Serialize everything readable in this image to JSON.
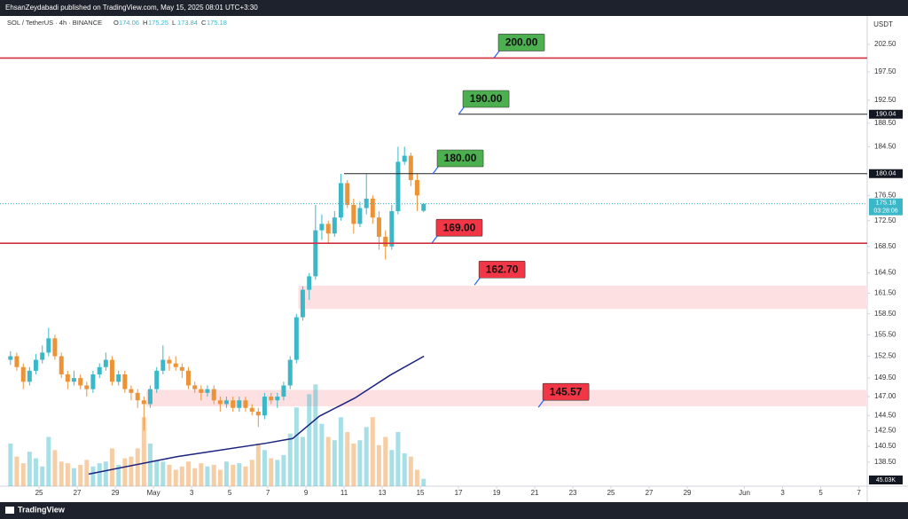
{
  "chart_data": {
    "type": "candlestick",
    "attribution": "EhsanZeydabadi published on TradingView.com, May 15, 2025 08:01 UTC+3:30",
    "symbol": "SOL / TetherUS · 4h · BINANCE",
    "ohlc_prefixes": [
      "O",
      "H",
      "L",
      "C"
    ],
    "currency": "USDT",
    "brand": "TradingView",
    "log_scale": true,
    "up_color": "#3bb8c8",
    "down_color": "#ec9237",
    "ylim": [
      135.5,
      207.8
    ],
    "yticks": [
      {
        "value": 202.5,
        "label": "202.50"
      },
      {
        "value": 197.5,
        "label": "197.50"
      },
      {
        "value": 192.5,
        "label": "192.50"
      },
      {
        "value": 188.5,
        "label": "188.50"
      },
      {
        "value": 184.5,
        "label": "184.50"
      },
      {
        "value": 176.5,
        "label": "176.50"
      },
      {
        "value": 172.5,
        "label": "172.50"
      },
      {
        "value": 168.5,
        "label": "168.50"
      },
      {
        "value": 164.5,
        "label": "164.50"
      },
      {
        "value": 161.5,
        "label": "161.50"
      },
      {
        "value": 158.5,
        "label": "158.50"
      },
      {
        "value": 155.5,
        "label": "155.50"
      },
      {
        "value": 152.5,
        "label": "152.50"
      },
      {
        "value": 149.5,
        "label": "149.50"
      },
      {
        "value": 147,
        "label": "147.00"
      },
      {
        "value": 144.5,
        "label": "144.50"
      },
      {
        "value": 142.5,
        "label": "142.50"
      },
      {
        "value": 140.5,
        "label": "140.50"
      },
      {
        "value": 138.5,
        "label": "138.50"
      }
    ],
    "xlim": [
      -2.05,
      43.44
    ],
    "xticks": [
      {
        "value": 0,
        "label": "25"
      },
      {
        "value": 2,
        "label": "27"
      },
      {
        "value": 4,
        "label": "29"
      },
      {
        "value": 6,
        "label": "May"
      },
      {
        "value": 8,
        "label": "3"
      },
      {
        "value": 10,
        "label": "5"
      },
      {
        "value": 12,
        "label": "7"
      },
      {
        "value": 14,
        "label": "9"
      },
      {
        "value": 16,
        "label": "11"
      },
      {
        "value": 18,
        "label": "13"
      },
      {
        "value": 20,
        "label": "15"
      },
      {
        "value": 22,
        "label": "17"
      },
      {
        "value": 24,
        "label": "19"
      },
      {
        "value": 26,
        "label": "21"
      },
      {
        "value": 28,
        "label": "23"
      },
      {
        "value": 30,
        "label": "25"
      },
      {
        "value": 32,
        "label": "27"
      },
      {
        "value": 34,
        "label": "29"
      },
      {
        "value": 37,
        "label": "Jun"
      },
      {
        "value": 39,
        "label": "3"
      },
      {
        "value": 41,
        "label": "5"
      },
      {
        "value": 43,
        "label": "7"
      }
    ],
    "x": [
      -1.5,
      -1.17,
      -0.83,
      -0.5,
      -0.17,
      0.17,
      0.5,
      0.83,
      1.17,
      1.5,
      1.83,
      2.17,
      2.5,
      2.83,
      3.17,
      3.5,
      3.83,
      4.17,
      4.5,
      4.83,
      5.17,
      5.5,
      5.83,
      6.17,
      6.5,
      6.83,
      7.17,
      7.5,
      7.83,
      8.17,
      8.5,
      8.83,
      9.17,
      9.5,
      9.83,
      10.17,
      10.5,
      10.83,
      11.17,
      11.5,
      11.83,
      12.17,
      12.5,
      12.83,
      13.17,
      13.5,
      13.83,
      14.17,
      14.5,
      14.83,
      15.17,
      15.5,
      15.83,
      16.17,
      16.5,
      16.83,
      17.17,
      17.5,
      17.83,
      18.17,
      18.5,
      18.83,
      19.17,
      19.5,
      19.83,
      20.17
    ],
    "candles": [
      [
        152,
        153.2,
        151.3,
        152.5
      ],
      [
        152.5,
        153,
        150.5,
        151
      ],
      [
        151,
        151.5,
        148,
        149
      ],
      [
        149,
        151,
        148.5,
        150.5
      ],
      [
        150.5,
        152.8,
        150,
        152
      ],
      [
        152,
        154,
        151.5,
        153
      ],
      [
        153,
        156.5,
        152.5,
        155
      ],
      [
        155,
        155.5,
        152,
        152.5
      ],
      [
        152.5,
        153,
        149.5,
        150
      ],
      [
        150,
        150.5,
        148,
        149
      ],
      [
        149,
        150.5,
        148.5,
        149.5
      ],
      [
        149.5,
        150,
        148,
        148.5
      ],
      [
        148.5,
        149,
        147,
        148
      ],
      [
        148,
        150.5,
        147.5,
        150
      ],
      [
        150,
        151.5,
        149.5,
        151
      ],
      [
        151,
        153,
        150.5,
        152
      ],
      [
        152,
        152.5,
        148.5,
        149
      ],
      [
        149,
        150.5,
        148.5,
        150
      ],
      [
        150,
        150.5,
        147.5,
        148
      ],
      [
        148,
        148.5,
        146.5,
        147.5
      ],
      [
        147.5,
        148,
        145.5,
        146.5
      ],
      [
        146.5,
        147,
        142.5,
        146
      ],
      [
        146,
        148.5,
        145.5,
        148
      ],
      [
        148,
        151,
        147.5,
        150.5
      ],
      [
        150.5,
        154,
        150,
        152
      ],
      [
        152,
        152.5,
        150.5,
        151.5
      ],
      [
        151.5,
        152.5,
        150.5,
        151
      ],
      [
        151,
        151.5,
        149.5,
        150.5
      ],
      [
        150.5,
        151,
        148,
        148.5
      ],
      [
        148.5,
        149,
        147.5,
        148
      ],
      [
        148,
        148.5,
        146.5,
        147.5
      ],
      [
        147.5,
        148.5,
        147,
        148
      ],
      [
        148,
        148.5,
        146,
        146.5
      ],
      [
        146.5,
        147,
        145,
        146
      ],
      [
        146,
        147,
        145.5,
        146.5
      ],
      [
        146.5,
        147,
        145,
        145.5
      ],
      [
        145.5,
        147,
        145,
        146.5
      ],
      [
        146.5,
        147,
        145,
        145.5
      ],
      [
        145.5,
        146,
        144.5,
        145
      ],
      [
        145,
        145.5,
        143,
        144.5
      ],
      [
        144.5,
        147.5,
        144,
        147
      ],
      [
        147,
        147.5,
        146,
        146.5
      ],
      [
        146.5,
        147.5,
        145.5,
        147
      ],
      [
        147,
        149,
        146.5,
        148.5
      ],
      [
        148.5,
        152.5,
        148,
        152
      ],
      [
        152,
        158.5,
        151.5,
        158
      ],
      [
        158,
        162.5,
        157.5,
        162
      ],
      [
        162,
        164.5,
        160.5,
        164
      ],
      [
        164,
        175,
        163.5,
        171
      ],
      [
        171,
        173.5,
        169.5,
        172
      ],
      [
        172,
        172.5,
        169,
        170.5
      ],
      [
        170.5,
        174,
        170,
        173
      ],
      [
        173,
        180,
        172.5,
        178.5
      ],
      [
        178.5,
        179,
        174.5,
        175
      ],
      [
        175,
        176,
        170.5,
        172
      ],
      [
        172,
        175.5,
        171.5,
        174.5
      ],
      [
        174.5,
        180,
        173.5,
        176
      ],
      [
        176,
        176.5,
        172,
        173
      ],
      [
        173,
        174,
        168,
        170
      ],
      [
        170,
        171,
        166.5,
        168.5
      ],
      [
        168.5,
        175,
        168,
        174
      ],
      [
        174,
        184.5,
        173.5,
        182
      ],
      [
        182,
        184.5,
        181.5,
        183
      ],
      [
        183,
        183.5,
        178,
        179
      ],
      [
        179,
        180,
        174,
        176.5
      ],
      [
        174.06,
        175.25,
        173.84,
        175.18
      ]
    ],
    "volumes": [
      260,
      180,
      140,
      210,
      170,
      120,
      300,
      220,
      150,
      140,
      110,
      130,
      160,
      120,
      140,
      150,
      230,
      130,
      170,
      180,
      230,
      420,
      260,
      160,
      150,
      130,
      100,
      120,
      150,
      110,
      140,
      120,
      130,
      100,
      150,
      130,
      140,
      120,
      160,
      260,
      220,
      170,
      160,
      190,
      320,
      480,
      300,
      560,
      620,
      380,
      300,
      280,
      420,
      330,
      260,
      280,
      360,
      420,
      250,
      300,
      220,
      330,
      200,
      180,
      100,
      45.03
    ],
    "volume_ylim": [
      0,
      800
    ],
    "volume_label": "45.03K",
    "countdown": "03:28:06",
    "moving_average": {
      "color": "#1a237e",
      "x": [
        2.6,
        7.26,
        11.91,
        13.3,
        14.7,
        16.56,
        18.42,
        20.19
      ],
      "values": [
        137.0,
        139.2,
        140.9,
        141.5,
        144.4,
        146.8,
        149.9,
        152.5
      ]
    },
    "zones": [
      {
        "from": 13.6,
        "range": [
          159.2,
          162.6
        ],
        "color": "#fde0e2"
      },
      {
        "from": 5.63,
        "range": [
          145.7,
          147.9
        ],
        "color": "#fde0e2"
      }
    ],
    "levels": [
      {
        "value": 200,
        "color": "#d32f3f"
      },
      {
        "value": 190.04,
        "color": "#222222",
        "from": 22.0,
        "axis_label": true
      },
      {
        "value": 180.04,
        "color": "#222222",
        "from": 16.0,
        "axis_label": true
      },
      {
        "value": 169,
        "color": "#d32f3f"
      }
    ],
    "annotations": [
      {
        "label": "200.00",
        "value": 200,
        "x": 23.86,
        "color": "#4caf50"
      },
      {
        "label": "190.00",
        "value": 190,
        "x": 22.0,
        "color": "#4caf50"
      },
      {
        "label": "180.00",
        "value": 180,
        "x": 20.65,
        "color": "#4caf50"
      },
      {
        "label": "169.00",
        "value": 169,
        "x": 20.6,
        "color": "#f23645"
      },
      {
        "label": "162.70",
        "value": 162.7,
        "x": 22.84,
        "color": "#f23645"
      },
      {
        "label": "145.57",
        "value": 145.57,
        "x": 26.19,
        "color": "#f23645"
      }
    ]
  }
}
